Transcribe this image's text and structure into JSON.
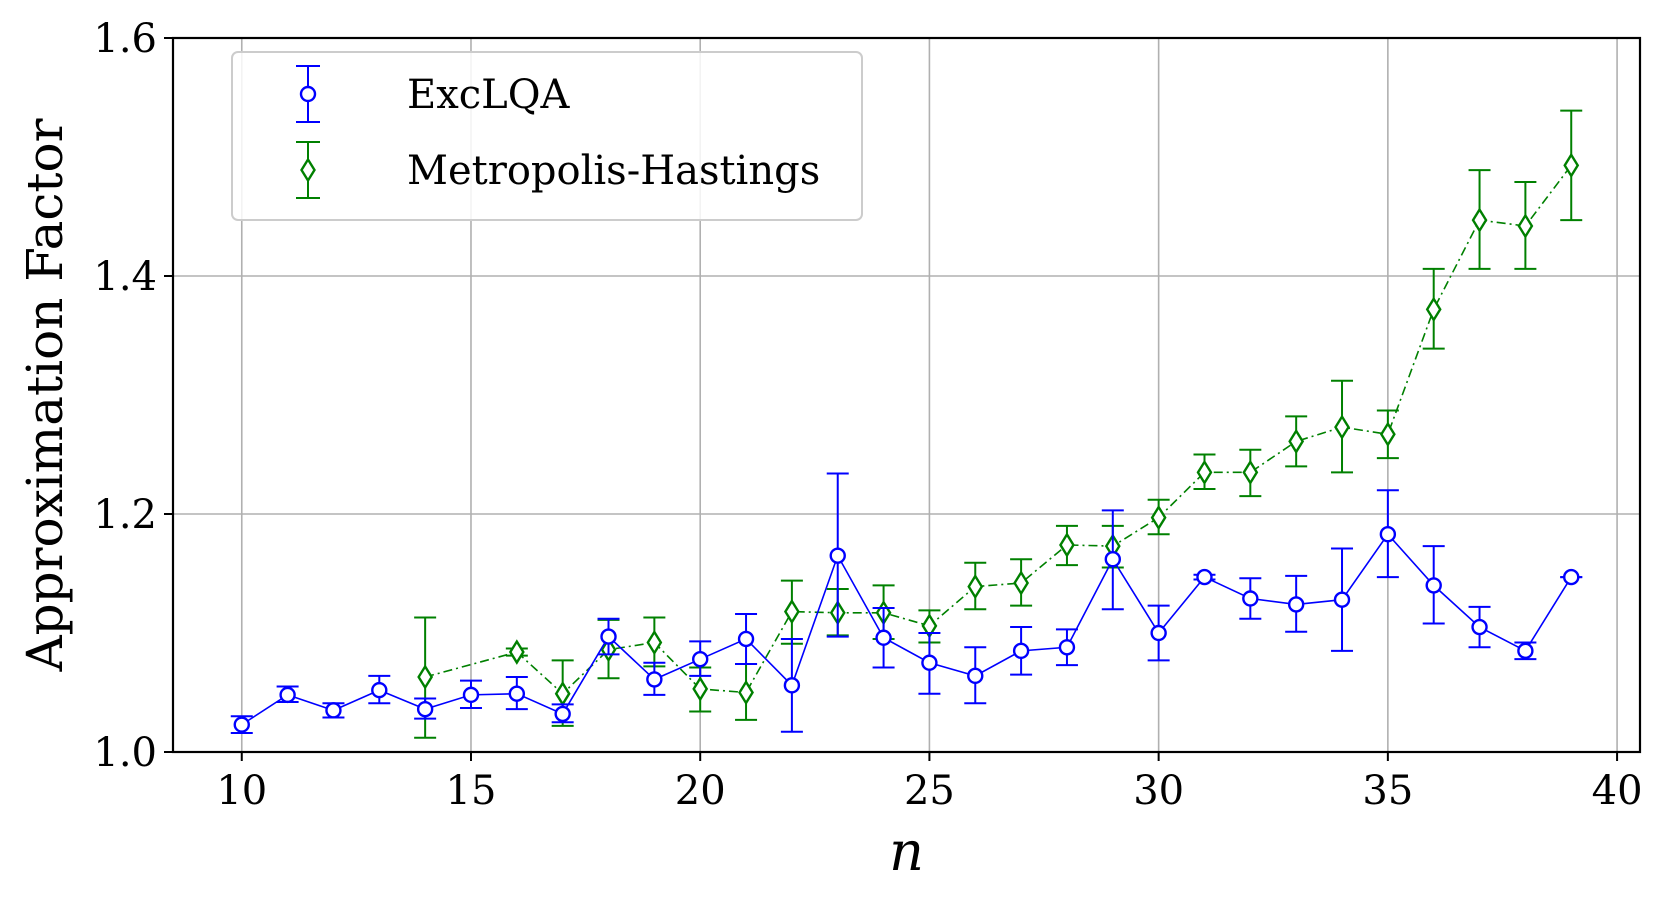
{
  "chart_data": {
    "type": "scatter",
    "title": "",
    "xlabel": "n",
    "ylabel": "Approximation Factor",
    "xlim": [
      8.5,
      40.5
    ],
    "ylim": [
      1.0,
      1.6
    ],
    "xticks": [
      10,
      15,
      20,
      25,
      30,
      35,
      40
    ],
    "yticks": [
      1.0,
      1.2,
      1.4,
      1.6
    ],
    "xtick_labels": [
      "10",
      "15",
      "20",
      "25",
      "30",
      "35",
      "40"
    ],
    "ytick_labels": [
      "1.0",
      "1.2",
      "1.4",
      "1.6"
    ],
    "grid": true,
    "legend_position": "top-left",
    "series": [
      {
        "name": "ExcLQA",
        "color": "#0000ff",
        "marker": "circle",
        "line_style": "solid",
        "x": [
          10,
          11,
          12,
          13,
          14,
          15,
          16,
          17,
          18,
          19,
          20,
          21,
          22,
          23,
          24,
          25,
          26,
          27,
          28,
          29,
          30,
          31,
          32,
          33,
          34,
          35,
          36,
          37,
          38,
          39
        ],
        "y": [
          1.023,
          1.048,
          1.035,
          1.052,
          1.036,
          1.048,
          1.049,
          1.032,
          1.097,
          1.061,
          1.078,
          1.095,
          1.056,
          1.165,
          1.096,
          1.075,
          1.064,
          1.085,
          1.088,
          1.162,
          1.1,
          1.147,
          1.129,
          1.124,
          1.128,
          1.183,
          1.14,
          1.105,
          1.085,
          1.147
        ],
        "yerr_low": [
          1.016,
          1.042,
          1.029,
          1.041,
          1.028,
          1.037,
          1.036,
          1.025,
          1.082,
          1.048,
          1.064,
          1.074,
          1.017,
          1.097,
          1.071,
          1.049,
          1.041,
          1.065,
          1.073,
          1.12,
          1.077,
          1.145,
          1.112,
          1.101,
          1.085,
          1.147,
          1.108,
          1.088,
          1.078,
          1.147
        ],
        "yerr_high": [
          1.03,
          1.055,
          1.041,
          1.064,
          1.045,
          1.06,
          1.063,
          1.04,
          1.112,
          1.075,
          1.093,
          1.116,
          1.095,
          1.234,
          1.121,
          1.1,
          1.088,
          1.105,
          1.103,
          1.203,
          1.123,
          1.149,
          1.146,
          1.148,
          1.171,
          1.22,
          1.173,
          1.122,
          1.092,
          1.147
        ]
      },
      {
        "name": "Metropolis-Hastings",
        "color": "#008000",
        "marker": "diamond",
        "line_style": "dashdot",
        "x": [
          14,
          16,
          17,
          18,
          19,
          20,
          21,
          22,
          23,
          24,
          25,
          26,
          27,
          28,
          29,
          30,
          31,
          32,
          33,
          34,
          35,
          36,
          37,
          38,
          39
        ],
        "y": [
          1.063,
          1.084,
          1.049,
          1.086,
          1.092,
          1.053,
          1.05,
          1.118,
          1.117,
          1.117,
          1.106,
          1.139,
          1.142,
          1.174,
          1.173,
          1.197,
          1.235,
          1.235,
          1.261,
          1.273,
          1.267,
          1.372,
          1.447,
          1.442,
          1.493
        ],
        "yerr_low": [
          1.012,
          1.081,
          1.022,
          1.062,
          1.072,
          1.034,
          1.027,
          1.091,
          1.098,
          1.095,
          1.092,
          1.12,
          1.123,
          1.157,
          1.155,
          1.183,
          1.221,
          1.215,
          1.24,
          1.235,
          1.247,
          1.339,
          1.406,
          1.406,
          1.447
        ],
        "yerr_high": [
          1.113,
          1.087,
          1.077,
          1.111,
          1.113,
          1.071,
          1.074,
          1.144,
          1.137,
          1.14,
          1.119,
          1.159,
          1.162,
          1.19,
          1.19,
          1.212,
          1.25,
          1.254,
          1.282,
          1.312,
          1.287,
          1.406,
          1.489,
          1.479,
          1.539
        ]
      }
    ]
  }
}
